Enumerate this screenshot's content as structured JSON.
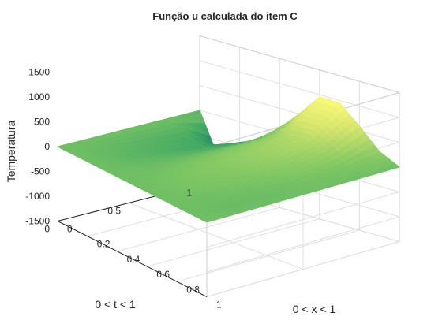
{
  "chart_data": {
    "type": "surface",
    "title": "Função u calculada do item C",
    "xlabel": "0 < x < 1",
    "ylabel": "0 < t < 1",
    "zlabel": "Temperatura",
    "xlim": [
      0,
      1
    ],
    "ylim": [
      0,
      1
    ],
    "zlim": [
      -1500,
      1500
    ],
    "x_ticks": [
      "0",
      "0.2",
      "0.4",
      "0.6",
      "0.8",
      "1"
    ],
    "y_ticks": [
      "0",
      "0.5",
      "1"
    ],
    "z_ticks": [
      "-1500",
      "-1000",
      "-500",
      "0",
      "500",
      "1000",
      "1500"
    ],
    "grid": true,
    "colormap": "parula",
    "surface": {
      "x": [
        0,
        0.1,
        0.2,
        0.3,
        0.4,
        0.5,
        0.6,
        0.7,
        0.8,
        0.9,
        1.0
      ],
      "t": [
        0,
        0.2,
        0.4,
        0.6,
        0.8,
        1.0
      ],
      "z": [
        [
          0,
          0,
          0,
          0,
          0,
          0,
          0,
          0,
          0,
          0,
          0
        ],
        [
          0,
          -63,
          -81,
          -52,
          0,
          52,
          81,
          63,
          0,
          -48,
          0
        ],
        [
          0,
          -126,
          -162,
          -105,
          0,
          105,
          162,
          126,
          60,
          -24,
          0
        ],
        [
          0,
          -189,
          -243,
          -157,
          0,
          157,
          243,
          250,
          150,
          40,
          0
        ],
        [
          0,
          -252,
          -323,
          -210,
          0,
          210,
          380,
          420,
          260,
          80,
          0
        ],
        [
          0,
          -900,
          -420,
          -250,
          40,
          500,
          960,
          950,
          600,
          200,
          0
        ]
      ]
    }
  }
}
